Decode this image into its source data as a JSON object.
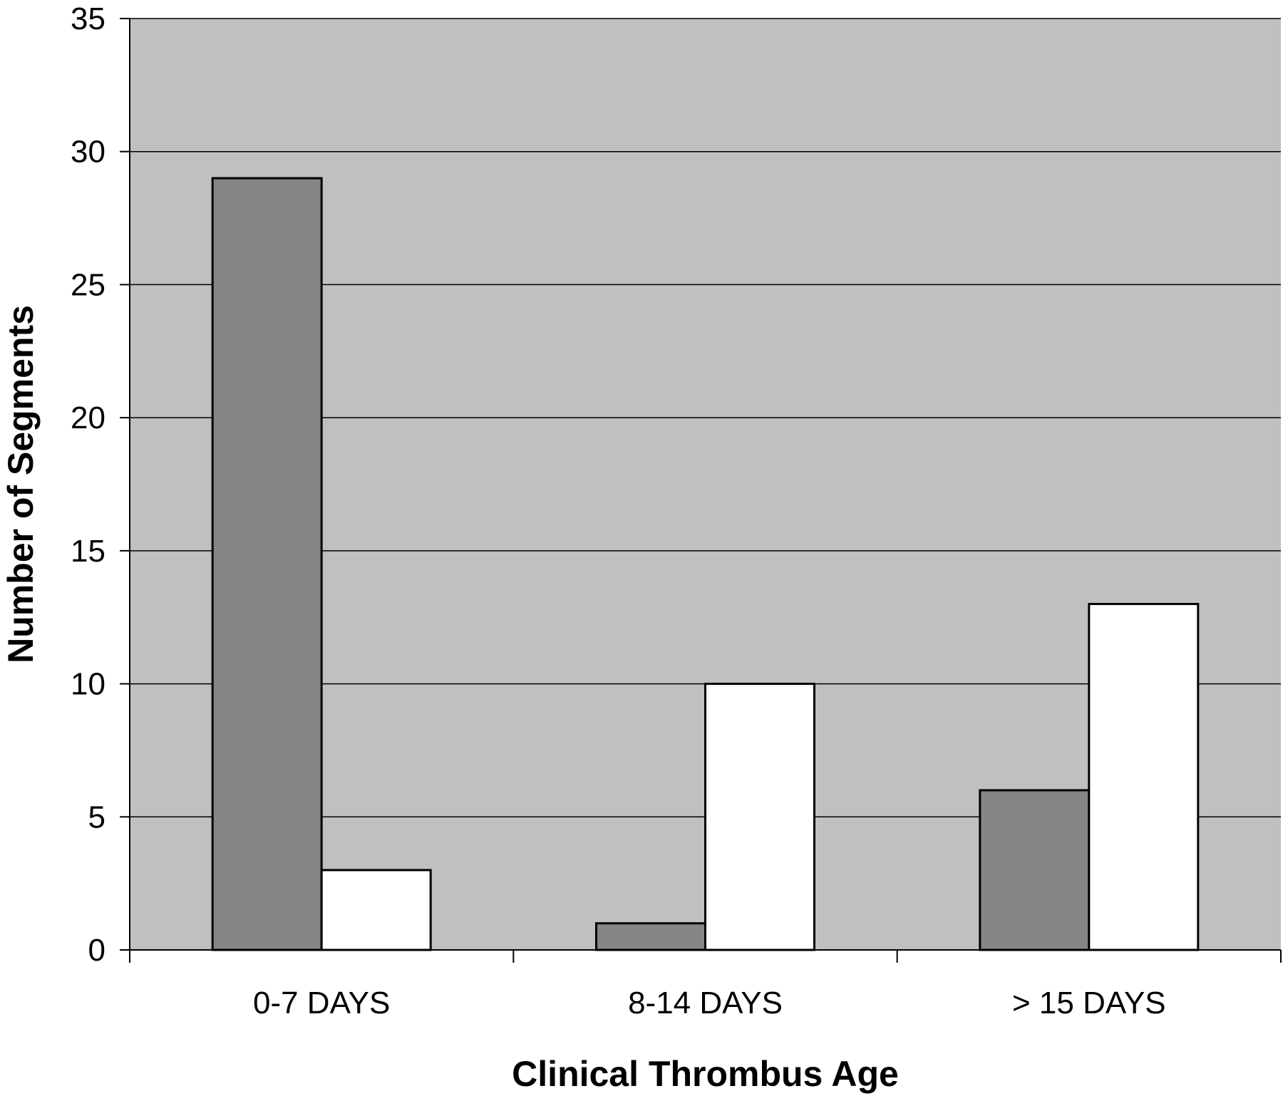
{
  "chart_data": {
    "type": "bar",
    "title": "",
    "xlabel": "Clinical Thrombus Age",
    "ylabel": "Number of Segments",
    "categories": [
      "0-7 DAYS",
      "8-14 DAYS",
      "> 15 DAYS"
    ],
    "series": [
      {
        "values": [
          29,
          1,
          6
        ],
        "color": "#858585"
      },
      {
        "values": [
          3,
          10,
          13
        ],
        "color": "#ffffff"
      }
    ],
    "ylim": [
      0,
      35
    ],
    "yticks": [
      0,
      5,
      10,
      15,
      20,
      25,
      30,
      35
    ],
    "grid": true,
    "legend": "none",
    "plot_background": "#c0c0c0"
  }
}
